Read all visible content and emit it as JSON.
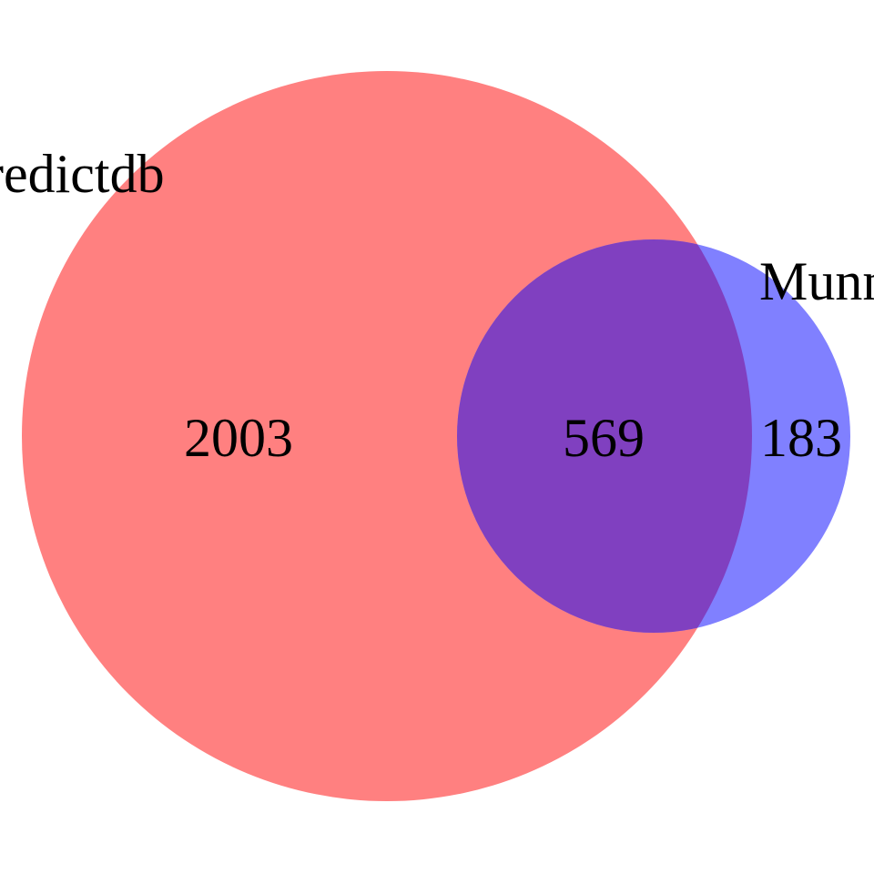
{
  "sets": [
    {
      "label": "redictdb",
      "color": "#ff8080",
      "only_count": "2003"
    },
    {
      "label": "Munn",
      "color": "#8080ff",
      "only_count": "183"
    }
  ],
  "intersection": {
    "count": "569",
    "color": "#8040c0"
  },
  "background": "#ffffff"
}
